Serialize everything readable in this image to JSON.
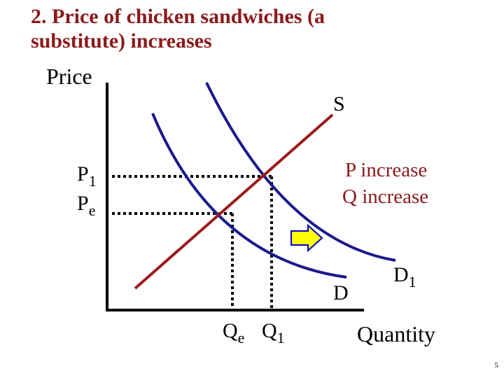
{
  "title": "2. Price of chicken sandwiches (a substitute) increases",
  "axes": {
    "y_label": "Price",
    "x_label": "Quantity"
  },
  "curves": {
    "supply_label": "S",
    "demand_label": "D",
    "demand_shifted_label": "D",
    "demand_shifted_subscript": "1"
  },
  "price_levels": {
    "p1_main": "P",
    "p1_sub": "1",
    "pe_main": "P",
    "pe_sub": "e"
  },
  "quantity_levels": {
    "qe_main": "Q",
    "qe_sub": "e",
    "q1_main": "Q",
    "q1_sub": "1"
  },
  "annotation": {
    "line1": "P increase",
    "line2": "Q increase"
  },
  "arrow": {
    "direction": "right",
    "fill": "#ffff00",
    "stroke": "#0000cc"
  },
  "colors": {
    "supply": "#9b1a1a",
    "demand": "#1a1a8c",
    "axes": "#000000",
    "title": "#8b1a1a"
  },
  "page_number": "5"
}
